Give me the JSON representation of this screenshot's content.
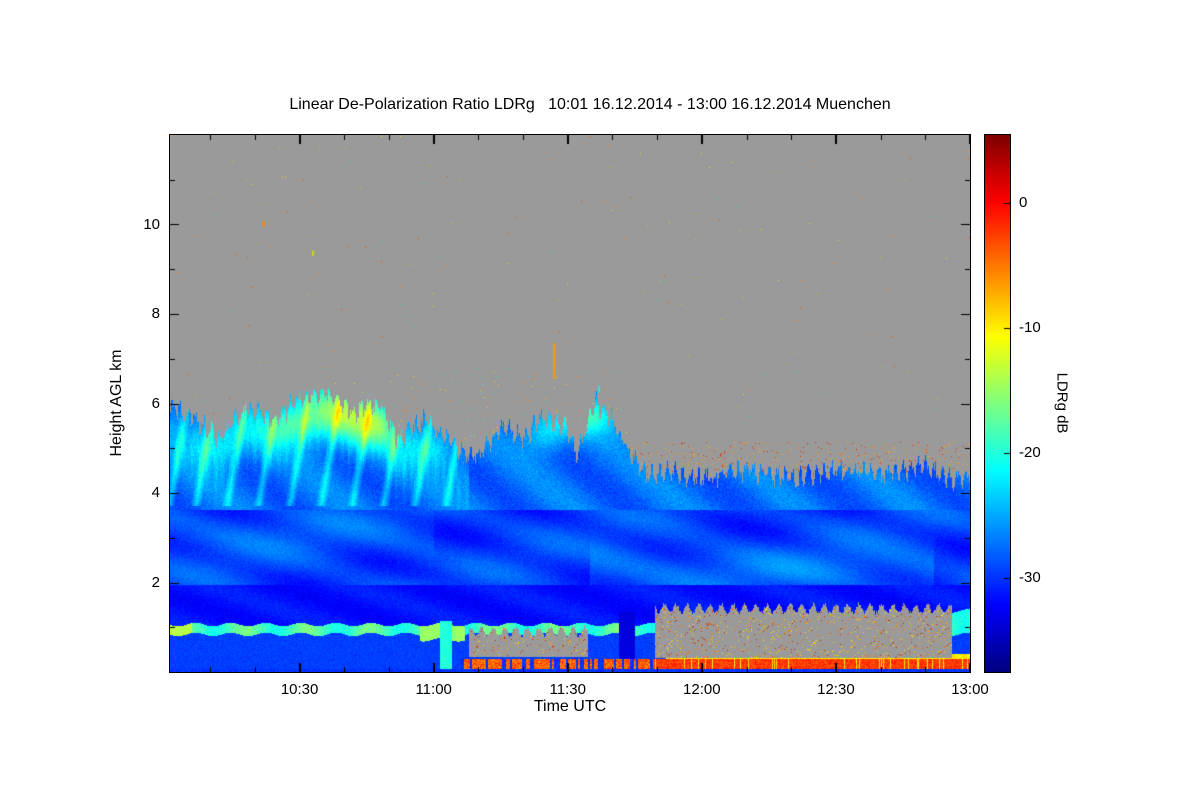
{
  "chart_data": {
    "type": "heatmap",
    "title": "Linear De-Polarization Ratio LDRg   10:01 16.12.2014 - 13:00 16.12.2014 Muenchen",
    "station": "Muenchen",
    "time_start": "10:01 16.12.2014",
    "time_end": "13:00 16.12.2014",
    "xlabel": "Time UTC",
    "ylabel": "Height AGL km",
    "colorbar_label": "LDRg dB",
    "x_axis": {
      "start_minutes": 601,
      "end_minutes": 780,
      "major_ticks": [
        {
          "minutes": 630,
          "label": "10:30"
        },
        {
          "minutes": 660,
          "label": "11:00"
        },
        {
          "minutes": 690,
          "label": "11:30"
        },
        {
          "minutes": 720,
          "label": "12:00"
        },
        {
          "minutes": 750,
          "label": "12:30"
        },
        {
          "minutes": 780,
          "label": "13:00"
        }
      ],
      "minor_step_minutes": 10
    },
    "y_axis": {
      "min_km": 0,
      "max_km": 12,
      "major_ticks_km": [
        2,
        4,
        6,
        8,
        10
      ],
      "minor_step_km": 1
    },
    "colorbar": {
      "max_db": 5.4,
      "min_db": -37.5,
      "tick_labels_db": [
        0,
        -10,
        -20,
        -30
      ],
      "colormap": "jet"
    },
    "no_data_color": "#9a9a9a",
    "field": {
      "cloud_top_profile_min_km": [
        [
          601,
          5.9
        ],
        [
          606,
          5.7
        ],
        [
          612,
          5.2
        ],
        [
          618,
          5.9
        ],
        [
          624,
          5.6
        ],
        [
          630,
          6.1
        ],
        [
          636,
          6.2
        ],
        [
          642,
          5.8
        ],
        [
          648,
          6.0
        ],
        [
          652,
          5.2
        ],
        [
          658,
          5.6
        ],
        [
          664,
          5.1
        ],
        [
          670,
          4.8
        ],
        [
          676,
          5.5
        ],
        [
          680,
          5.2
        ],
        [
          684,
          5.7
        ],
        [
          690,
          5.4
        ],
        [
          692,
          4.8
        ],
        [
          696,
          6.05
        ],
        [
          700,
          5.6
        ],
        [
          704,
          4.9
        ],
        [
          708,
          4.4
        ],
        [
          714,
          4.5
        ],
        [
          720,
          4.3
        ],
        [
          730,
          4.5
        ],
        [
          740,
          4.3
        ],
        [
          750,
          4.5
        ],
        [
          760,
          4.4
        ],
        [
          770,
          4.6
        ],
        [
          776,
          4.3
        ],
        [
          780,
          4.4
        ]
      ],
      "melting_layer": {
        "base_km": 0.84,
        "top_km": 1.06,
        "db": -18.5,
        "bright_left_end_minute": 606,
        "bright_left_db": -13.5,
        "blob_minute_range": [
          657,
          667
        ],
        "blob_db": -15,
        "right_blob_start_minute": 774,
        "right_blob_top_km": 1.36
      },
      "surface_band": {
        "start_minute": 666,
        "strong_start_minute": 709,
        "top_km": 0.3,
        "db_strong": -2.5,
        "db_mixed": -4,
        "yellow_line": {
          "start_minute": 712,
          "base_km": 0.3,
          "top_km": 0.4,
          "db": -10
        }
      },
      "columns": [
        {
          "minute_range": [
            701.5,
            705
          ],
          "top_km": 1.35,
          "db": -33.5
        },
        {
          "minute_range": [
            661.5,
            664
          ],
          "top_km": 1.15,
          "db": -20
        }
      ],
      "clutter_patches": [
        {
          "minute_range": [
            668,
            694.5
          ],
          "base_km": 0.34,
          "top_km": 0.9,
          "speckle_p": 0.05
        },
        {
          "minute_range": [
            709.5,
            776
          ],
          "base_km": 0.32,
          "top_km": 1.42,
          "speckle_p": 0.06
        }
      ],
      "cyan_patches": [
        [
          628,
          5.55,
          5,
          0.35,
          7
        ],
        [
          640,
          5.8,
          6,
          0.45,
          9
        ],
        [
          648,
          5.5,
          4,
          0.4,
          6
        ],
        [
          611,
          5.1,
          4,
          0.35,
          5
        ],
        [
          685,
          5.35,
          3.5,
          0.3,
          6
        ],
        [
          695,
          5.75,
          4.5,
          0.3,
          8
        ],
        [
          659,
          5.0,
          3,
          0.3,
          4
        ]
      ],
      "fallstreaks": {
        "t0_list": [
          604,
          610,
          617,
          624,
          631,
          638,
          645,
          652,
          659,
          666
        ],
        "slope_min_per_km": 1.8,
        "half_width_min": 1.3,
        "boost_db": 5,
        "h_range_km": [
          3.7,
          6.2
        ]
      },
      "speckles": {
        "default_p": 0.0007,
        "bands": [
          {
            "h_range": [
              4.35,
              5.15
            ],
            "m_range": [
              702,
              780
            ],
            "p": 0.035,
            "palette": [
              "#e03000",
              "#ff7700",
              "#ffb000"
            ]
          },
          {
            "h_range": [
              4.6,
              6.8
            ],
            "m_range": [
              650,
              702
            ],
            "p": 0.006,
            "palette": [
              "#ff7700",
              "#ffd000",
              "#40e0e0"
            ]
          }
        ],
        "palette": [
          "#ff8c00",
          "#ffd700",
          "#ff4400",
          "#40e0d0",
          "#aadd00"
        ],
        "patch_palette": [
          "#cc2200",
          "#ff6600",
          "#ffaa00",
          "#ffdd00"
        ]
      },
      "special_marks": [
        {
          "m": 687,
          "h0": 6.55,
          "h1": 7.35,
          "color": "#ff9900"
        },
        {
          "m": 622,
          "h0": 9.95,
          "h1": 10.08,
          "color": "#ff8c00"
        },
        {
          "m": 633,
          "h0": 9.3,
          "h1": 9.42,
          "color": "#ccdd00"
        },
        {
          "m": 697,
          "h0": 6.25,
          "h1": 6.4,
          "color": "#33dddd"
        }
      ]
    }
  }
}
